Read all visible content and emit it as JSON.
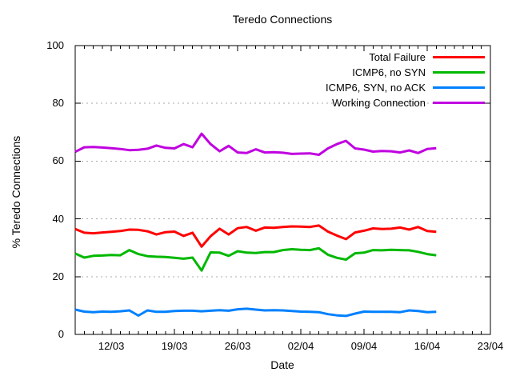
{
  "chart_data": {
    "type": "line",
    "title": "Teredo Connections",
    "xlabel": "Date",
    "ylabel": "% Teredo Connections",
    "ylim": [
      0,
      100
    ],
    "y_ticks": [
      0,
      20,
      40,
      60,
      80,
      100
    ],
    "grid": "horizontal-dotted",
    "legend_position": "top-right-inside",
    "x_axis": {
      "start_date": "08/03",
      "end_date": "23/04",
      "total_days": 46,
      "minor_tick_interval_days": 1,
      "major_ticks": [
        {
          "label": "12/03",
          "day": 4
        },
        {
          "label": "19/03",
          "day": 11
        },
        {
          "label": "26/03",
          "day": 18
        },
        {
          "label": "02/04",
          "day": 25
        },
        {
          "label": "09/04",
          "day": 32
        },
        {
          "label": "16/04",
          "day": 39
        },
        {
          "label": "23/04",
          "day": 46
        }
      ]
    },
    "series": [
      {
        "name": "Total Failure",
        "color": "#ff0000",
        "start_day": 0,
        "values": [
          36.5,
          35.2,
          35.0,
          35.3,
          35.5,
          35.8,
          36.3,
          36.2,
          35.7,
          34.6,
          35.4,
          35.6,
          34.1,
          35.2,
          30.4,
          34.0,
          36.6,
          34.6,
          36.8,
          37.2,
          35.9,
          37.0,
          36.9,
          37.2,
          37.4,
          37.3,
          37.2,
          37.7,
          35.6,
          34.2,
          33.0,
          35.3,
          35.9,
          36.7,
          36.5,
          36.6,
          37.0,
          36.3,
          37.2,
          35.8,
          35.5
        ]
      },
      {
        "name": "ICMP6, no SYN",
        "color": "#00b800",
        "start_day": 0,
        "values": [
          28.0,
          26.6,
          27.2,
          27.3,
          27.5,
          27.4,
          29.2,
          27.8,
          27.1,
          26.9,
          26.8,
          26.5,
          26.2,
          26.6,
          22.1,
          28.4,
          28.3,
          27.2,
          28.8,
          28.3,
          28.2,
          28.5,
          28.5,
          29.2,
          29.5,
          29.3,
          29.2,
          29.8,
          27.6,
          26.5,
          25.9,
          28.1,
          28.3,
          29.2,
          29.1,
          29.3,
          29.2,
          29.1,
          28.6,
          27.8,
          27.4
        ]
      },
      {
        "name": "ICMP6, SYN, no ACK",
        "color": "#0080ff",
        "start_day": 0,
        "values": [
          8.6,
          7.9,
          7.7,
          7.9,
          7.8,
          8.0,
          8.3,
          6.5,
          8.3,
          7.8,
          7.8,
          8.1,
          8.2,
          8.2,
          8.0,
          8.2,
          8.4,
          8.2,
          8.7,
          8.9,
          8.6,
          8.3,
          8.4,
          8.3,
          8.1,
          7.9,
          7.8,
          7.7,
          7.0,
          6.6,
          6.4,
          7.2,
          7.9,
          7.8,
          7.8,
          7.8,
          7.7,
          8.3,
          8.1,
          7.7,
          7.8
        ]
      },
      {
        "name": "Working Connection",
        "color": "#c000e0",
        "start_day": 0,
        "values": [
          63.2,
          64.8,
          64.9,
          64.7,
          64.5,
          64.2,
          63.8,
          63.9,
          64.3,
          65.4,
          64.6,
          64.4,
          65.9,
          64.8,
          69.5,
          65.9,
          63.4,
          65.3,
          63.0,
          62.8,
          64.1,
          63.0,
          63.1,
          62.9,
          62.5,
          62.6,
          62.7,
          62.2,
          64.4,
          65.9,
          67.0,
          64.4,
          64.0,
          63.3,
          63.5,
          63.4,
          63.0,
          63.7,
          62.8,
          64.2,
          64.5
        ]
      }
    ],
    "plot_colors": {
      "background": "#ffffff",
      "border": "#000000",
      "grid": "#aaaaaa",
      "text": "#000000"
    }
  }
}
